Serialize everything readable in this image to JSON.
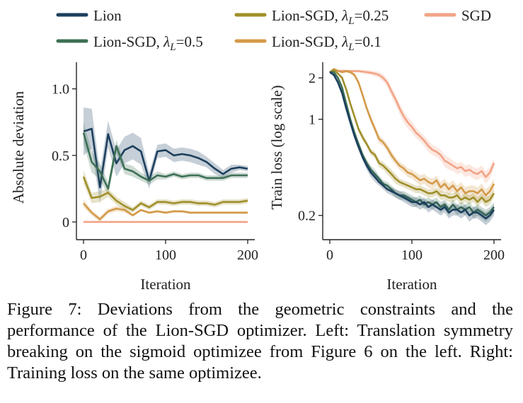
{
  "colors": {
    "lion": "#1c3f5e",
    "lion_sgd_05": "#3d7055",
    "lion_sgd_025": "#a08f2a",
    "lion_sgd_01": "#d49a4a",
    "sgd": "#f2a386",
    "axis": "#222222"
  },
  "legend": [
    {
      "key": "lion",
      "label_pre": "Lion",
      "label_math": "",
      "label_post": ""
    },
    {
      "key": "lion_sgd_025",
      "label_pre": "Lion-SGD, ",
      "label_math": "λ",
      "label_sub": "L",
      "label_post": "=0.25"
    },
    {
      "key": "sgd",
      "label_pre": "SGD",
      "label_math": "",
      "label_post": ""
    },
    {
      "key": "lion_sgd_05",
      "label_pre": "Lion-SGD, ",
      "label_math": "λ",
      "label_sub": "L",
      "label_post": "=0.5"
    },
    {
      "key": "lion_sgd_01",
      "label_pre": "Lion-SGD, ",
      "label_math": "λ",
      "label_sub": "L",
      "label_post": "=0.1"
    }
  ],
  "chart_data": [
    {
      "type": "line",
      "xlabel": "Iteration",
      "ylabel": "Absolute deviation",
      "xlim": [
        0,
        200
      ],
      "ylim": [
        -0.08,
        1.2
      ],
      "xticks": [
        0,
        100,
        200
      ],
      "xtick_labels": [
        "0",
        "100",
        "200"
      ],
      "yticks": [
        0,
        0.5,
        1.0
      ],
      "ytick_labels": [
        "0",
        "0.5",
        "1.0"
      ],
      "grid": false,
      "x": [
        0,
        10,
        20,
        30,
        40,
        50,
        60,
        70,
        80,
        90,
        100,
        110,
        120,
        130,
        140,
        150,
        160,
        170,
        180,
        190,
        200
      ],
      "series": [
        {
          "key": "lion",
          "values": [
            0.68,
            0.7,
            0.26,
            0.66,
            0.44,
            0.54,
            0.57,
            0.53,
            0.31,
            0.53,
            0.54,
            0.5,
            0.51,
            0.5,
            0.48,
            0.45,
            0.4,
            0.36,
            0.4,
            0.41,
            0.4
          ],
          "band": [
            0.18,
            0.15,
            0.12,
            0.1,
            0.1,
            0.1,
            0.1,
            0.1,
            0.06,
            0.05,
            0.05,
            0.05,
            0.05,
            0.05,
            0.05,
            0.04,
            0.04,
            0.03,
            0.03,
            0.02,
            0.02
          ]
        },
        {
          "key": "lion_sgd_05",
          "values": [
            0.67,
            0.45,
            0.38,
            0.25,
            0.57,
            0.4,
            0.38,
            0.34,
            0.31,
            0.35,
            0.34,
            0.36,
            0.34,
            0.35,
            0.35,
            0.33,
            0.33,
            0.33,
            0.35,
            0.35,
            0.35
          ],
          "band": [
            0.08,
            0.08,
            0.06,
            0.05,
            0.05,
            0.04,
            0.04,
            0.03,
            0.03,
            0.03,
            0.02,
            0.02,
            0.02,
            0.02,
            0.02,
            0.02,
            0.02,
            0.02,
            0.02,
            0.02,
            0.02
          ]
        },
        {
          "key": "lion_sgd_025",
          "values": [
            0.34,
            0.18,
            0.19,
            0.22,
            0.16,
            0.12,
            0.09,
            0.14,
            0.11,
            0.15,
            0.15,
            0.14,
            0.15,
            0.15,
            0.14,
            0.14,
            0.13,
            0.15,
            0.15,
            0.15,
            0.16
          ],
          "band": [
            0.05,
            0.04,
            0.04,
            0.03,
            0.03,
            0.03,
            0.02,
            0.02,
            0.02,
            0.02,
            0.02,
            0.02,
            0.02,
            0.02,
            0.02,
            0.02,
            0.02,
            0.02,
            0.02,
            0.02,
            0.02
          ]
        },
        {
          "key": "lion_sgd_01",
          "values": [
            0.14,
            0.07,
            0.02,
            0.08,
            0.1,
            0.09,
            0.05,
            0.09,
            0.07,
            0.08,
            0.07,
            0.08,
            0.08,
            0.07,
            0.07,
            0.07,
            0.07,
            0.07,
            0.07,
            0.07,
            0.07
          ],
          "band": [
            0.03,
            0.02,
            0.02,
            0.02,
            0.02,
            0.02,
            0.01,
            0.01,
            0.01,
            0.01,
            0.01,
            0.01,
            0.01,
            0.01,
            0.01,
            0.01,
            0.01,
            0.01,
            0.01,
            0.01,
            0.01
          ]
        },
        {
          "key": "sgd",
          "values": [
            0.0,
            0.0,
            0.0,
            0.0,
            0.0,
            0.0,
            0.0,
            0.0,
            0.0,
            0.0,
            0.0,
            0.0,
            0.0,
            0.0,
            0.0,
            0.0,
            0.0,
            0.0,
            0.0,
            0.0,
            0.0
          ],
          "band": [
            0.0,
            0.0,
            0.0,
            0.0,
            0.0,
            0.0,
            0.0,
            0.0,
            0.0,
            0.0,
            0.0,
            0.0,
            0.0,
            0.0,
            0.0,
            0.0,
            0.0,
            0.0,
            0.0,
            0.0,
            0.0
          ]
        }
      ]
    },
    {
      "type": "line",
      "xlabel": "Iteration",
      "ylabel": "Train loss (log scale)",
      "xlim": [
        0,
        200
      ],
      "ylim": [
        0.15,
        2.6
      ],
      "yscale": "log",
      "xticks": [
        0,
        100,
        200
      ],
      "xtick_labels": [
        "0",
        "100",
        "200"
      ],
      "yticks": [
        0.2,
        1,
        2
      ],
      "ytick_labels": [
        "0.2",
        "1",
        "2"
      ],
      "grid": false,
      "x": [
        0,
        5,
        10,
        15,
        20,
        25,
        30,
        35,
        40,
        45,
        50,
        55,
        60,
        65,
        70,
        75,
        80,
        85,
        90,
        95,
        100,
        105,
        110,
        115,
        120,
        125,
        130,
        135,
        140,
        145,
        150,
        155,
        160,
        165,
        170,
        175,
        180,
        185,
        190,
        195,
        200
      ],
      "series": [
        {
          "key": "sgd",
          "values": [
            2.2,
            2.3,
            2.25,
            2.25,
            2.25,
            2.24,
            2.24,
            2.24,
            2.22,
            2.2,
            2.18,
            2.15,
            2.1,
            2.0,
            1.85,
            1.6,
            1.4,
            1.2,
            1.05,
            0.95,
            0.88,
            0.8,
            0.75,
            0.7,
            0.64,
            0.6,
            0.58,
            0.55,
            0.5,
            0.48,
            0.46,
            0.44,
            0.45,
            0.42,
            0.43,
            0.41,
            0.4,
            0.42,
            0.38,
            0.41,
            0.48
          ],
          "band": [
            0.02,
            0.03,
            0.03,
            0.03,
            0.03,
            0.04,
            0.05,
            0.06,
            0.07,
            0.08,
            0.09,
            0.1,
            0.11,
            0.12,
            0.13,
            0.13,
            0.12,
            0.11,
            0.1,
            0.09,
            0.08,
            0.07,
            0.06,
            0.06,
            0.06,
            0.05,
            0.05,
            0.05,
            0.05,
            0.05,
            0.04,
            0.04,
            0.04,
            0.04,
            0.04,
            0.04,
            0.04,
            0.04,
            0.04,
            0.04,
            0.04
          ]
        },
        {
          "key": "lion_sgd_01",
          "values": [
            2.2,
            2.32,
            2.25,
            2.2,
            2.24,
            2.2,
            2.1,
            1.85,
            1.5,
            1.2,
            1.0,
            0.85,
            0.72,
            0.68,
            0.62,
            0.55,
            0.5,
            0.46,
            0.44,
            0.41,
            0.4,
            0.38,
            0.36,
            0.37,
            0.35,
            0.34,
            0.36,
            0.32,
            0.34,
            0.31,
            0.33,
            0.3,
            0.32,
            0.29,
            0.3,
            0.3,
            0.29,
            0.31,
            0.28,
            0.3,
            0.34
          ],
          "band": [
            0.02,
            0.03,
            0.03,
            0.04,
            0.05,
            0.06,
            0.07,
            0.08,
            0.08,
            0.07,
            0.06,
            0.05,
            0.05,
            0.04,
            0.04,
            0.04,
            0.03,
            0.03,
            0.03,
            0.03,
            0.03,
            0.03,
            0.03,
            0.03,
            0.03,
            0.03,
            0.03,
            0.03,
            0.03,
            0.03,
            0.03,
            0.03,
            0.03,
            0.03,
            0.03,
            0.03,
            0.03,
            0.03,
            0.03,
            0.03,
            0.03
          ]
        },
        {
          "key": "lion_sgd_025",
          "values": [
            2.2,
            2.28,
            2.15,
            2.0,
            1.65,
            1.3,
            1.05,
            0.85,
            0.74,
            0.66,
            0.58,
            0.55,
            0.48,
            0.46,
            0.43,
            0.4,
            0.37,
            0.35,
            0.34,
            0.33,
            0.32,
            0.31,
            0.31,
            0.3,
            0.29,
            0.29,
            0.3,
            0.28,
            0.28,
            0.27,
            0.27,
            0.28,
            0.26,
            0.27,
            0.26,
            0.27,
            0.25,
            0.27,
            0.25,
            0.26,
            0.29
          ],
          "band": [
            0.02,
            0.03,
            0.04,
            0.05,
            0.06,
            0.06,
            0.05,
            0.04,
            0.04,
            0.03,
            0.03,
            0.03,
            0.03,
            0.03,
            0.03,
            0.03,
            0.03,
            0.02,
            0.02,
            0.02,
            0.02,
            0.02,
            0.02,
            0.02,
            0.02,
            0.02,
            0.02,
            0.02,
            0.02,
            0.02,
            0.02,
            0.02,
            0.02,
            0.02,
            0.02,
            0.02,
            0.02,
            0.02,
            0.02,
            0.02,
            0.02
          ]
        },
        {
          "key": "lion_sgd_05",
          "values": [
            2.2,
            2.2,
            2.0,
            1.7,
            1.3,
            1.0,
            0.8,
            0.66,
            0.55,
            0.48,
            0.43,
            0.4,
            0.37,
            0.34,
            0.33,
            0.31,
            0.29,
            0.28,
            0.28,
            0.27,
            0.26,
            0.25,
            0.26,
            0.24,
            0.25,
            0.24,
            0.25,
            0.23,
            0.24,
            0.22,
            0.24,
            0.22,
            0.23,
            0.22,
            0.23,
            0.21,
            0.22,
            0.21,
            0.2,
            0.21,
            0.23
          ],
          "band": [
            0.02,
            0.03,
            0.04,
            0.05,
            0.05,
            0.04,
            0.04,
            0.03,
            0.03,
            0.03,
            0.03,
            0.03,
            0.02,
            0.02,
            0.02,
            0.02,
            0.02,
            0.02,
            0.02,
            0.02,
            0.02,
            0.02,
            0.02,
            0.02,
            0.02,
            0.02,
            0.02,
            0.02,
            0.02,
            0.02,
            0.02,
            0.02,
            0.02,
            0.02,
            0.02,
            0.02,
            0.02,
            0.02,
            0.02,
            0.02,
            0.02
          ]
        },
        {
          "key": "lion",
          "values": [
            2.2,
            2.1,
            1.85,
            1.55,
            1.2,
            0.95,
            0.76,
            0.63,
            0.53,
            0.46,
            0.41,
            0.38,
            0.35,
            0.33,
            0.31,
            0.3,
            0.29,
            0.28,
            0.27,
            0.26,
            0.25,
            0.25,
            0.24,
            0.25,
            0.23,
            0.24,
            0.23,
            0.22,
            0.23,
            0.21,
            0.22,
            0.22,
            0.21,
            0.22,
            0.2,
            0.21,
            0.21,
            0.2,
            0.19,
            0.2,
            0.22
          ],
          "band": [
            0.02,
            0.03,
            0.04,
            0.05,
            0.05,
            0.04,
            0.04,
            0.03,
            0.03,
            0.03,
            0.03,
            0.03,
            0.02,
            0.02,
            0.02,
            0.02,
            0.02,
            0.02,
            0.02,
            0.02,
            0.02,
            0.02,
            0.02,
            0.02,
            0.02,
            0.02,
            0.02,
            0.02,
            0.02,
            0.02,
            0.02,
            0.02,
            0.02,
            0.02,
            0.02,
            0.02,
            0.02,
            0.02,
            0.02,
            0.02,
            0.02
          ]
        }
      ]
    }
  ],
  "caption": {
    "label": "Figure 7:",
    "text": "Deviations from the geometric constraints and the performance of the Lion-SGD optimizer. Left: Translation symmetry breaking on the sigmoid optimizee from Figure 6 on the left. Right: Training loss on the same optimizee."
  }
}
